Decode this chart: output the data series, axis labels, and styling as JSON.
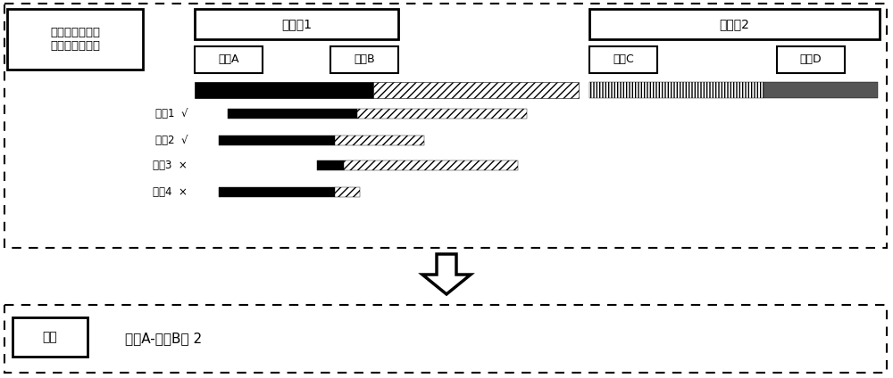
{
  "title_box_text": "判断序列是否明\n显支持基因融合",
  "amplicon1_label": "扩增子1",
  "amplicon2_label": "扩增子2",
  "geneA_label": "基因A",
  "geneB_label": "基因B",
  "geneC_label": "基因C",
  "geneD_label": "基因D",
  "seq_labels": [
    "序冗1  √",
    "序冗2  √",
    "序冗3  ×",
    "序冗4  ×"
  ],
  "result_label": "结果",
  "result_text": "基因A-基因B： 2",
  "white": "#ffffff",
  "black": "#000000",
  "gray_dark": "#555555",
  "bg": "#ffffff"
}
